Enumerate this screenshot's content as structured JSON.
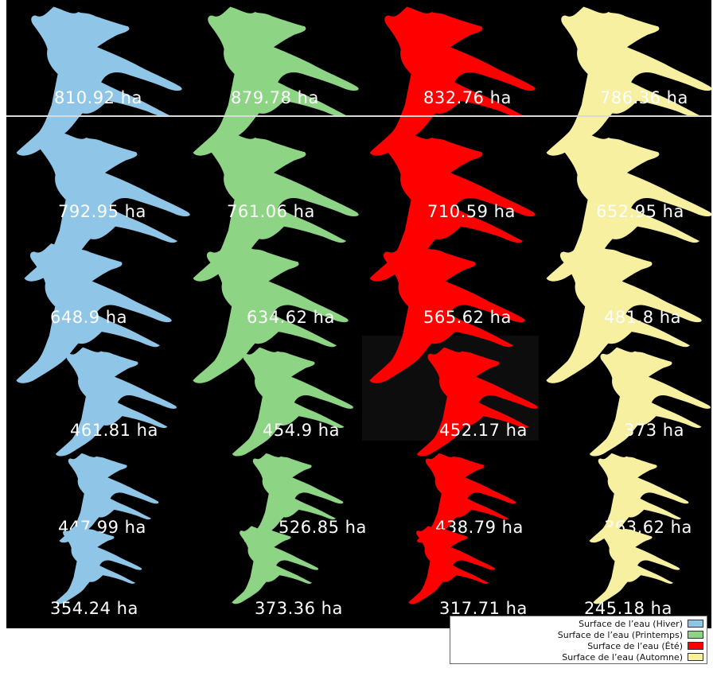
{
  "colors": {
    "background": "#000000",
    "row_divider": "#d9d9d9",
    "highlight_cell": "#0d0d0d",
    "hiver": "#8fc6e8",
    "printemps": "#8ed485",
    "ete": "#ff0000",
    "automne": "#f6f0a0"
  },
  "seasons_order": [
    "hiver",
    "printemps",
    "ete",
    "automne"
  ],
  "map_rows": [
    {
      "areas": [
        "810.92 ha",
        "879.78 ha",
        "832.76 ha",
        "786.36 ha"
      ]
    },
    {
      "areas": [
        "792.95 ha",
        "761.06 ha",
        "710.59 ha",
        "652.95 ha"
      ]
    },
    {
      "areas": [
        "648.9 ha",
        "634.62 ha",
        "565.62 ha",
        "481.8 ha"
      ]
    },
    {
      "areas": [
        "461.81 ha",
        "454.9 ha",
        "452.17 ha",
        "373 ha"
      ]
    },
    {
      "areas": [
        "447.99 ha",
        "526.85 ha",
        "438.79 ha",
        "363.62 ha"
      ]
    },
    {
      "areas": [
        "354.24 ha",
        "373.36 ha",
        "317.71 ha",
        "245.18 ha"
      ]
    }
  ],
  "legend": {
    "items": [
      {
        "label": "Surface de l’eau (Hiver)",
        "color": "#8fc6e8"
      },
      {
        "label": "Surface de l’eau (Printemps)",
        "color": "#8ed485"
      },
      {
        "label": "Surface de l’eau (Été)",
        "color": "#ff0000"
      },
      {
        "label": "Surface de l’eau (Automne)",
        "color": "#f6f0a0"
      }
    ]
  }
}
